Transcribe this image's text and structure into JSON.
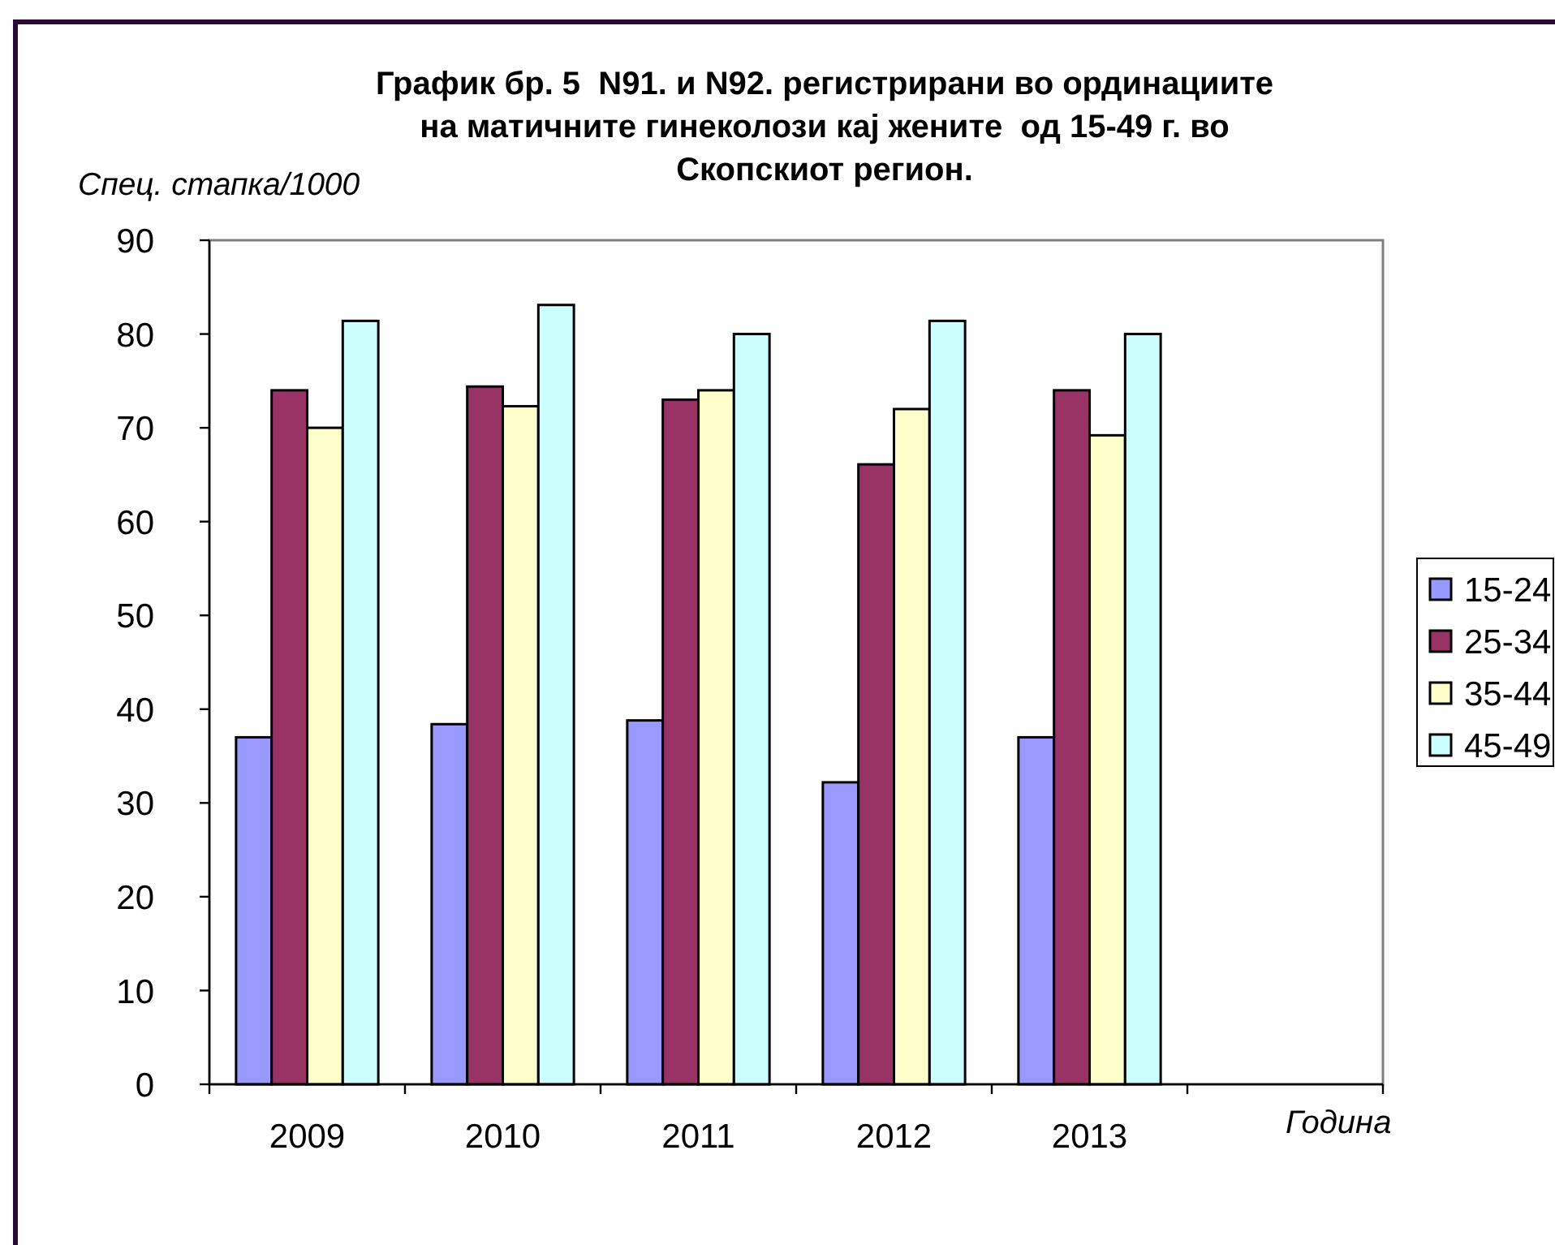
{
  "chart_data": {
    "type": "bar",
    "title": "График бр. 5  N91. и N92. регистрирани во ординациите на матичните гинеколози кај жените  од 15-49 г. во Скопскиот регион.",
    "xlabel": "Година",
    "ylabel": "Спец. стапка/1000",
    "categories": [
      "2009",
      "2010",
      "2011",
      "2012",
      "2013",
      null
    ],
    "series": [
      {
        "name": "15-24",
        "color": "#9999ff",
        "values": [
          37.0,
          38.4,
          38.8,
          32.2,
          37.0,
          null
        ]
      },
      {
        "name": "25-34",
        "color": "#993366",
        "values": [
          74.0,
          74.4,
          73.0,
          66.1,
          74.0,
          null
        ]
      },
      {
        "name": "35-44",
        "color": "#ffffcc",
        "values": [
          70.0,
          72.3,
          74.0,
          72.0,
          69.2,
          null
        ]
      },
      {
        "name": "45-49",
        "color": "#ccffff",
        "values": [
          81.4,
          83.1,
          80.0,
          81.4,
          80.0,
          null
        ]
      }
    ],
    "ylim": [
      0,
      90
    ],
    "yticks": [
      0,
      10,
      20,
      30,
      40,
      50,
      60,
      70,
      80,
      90
    ],
    "legend": "right"
  }
}
